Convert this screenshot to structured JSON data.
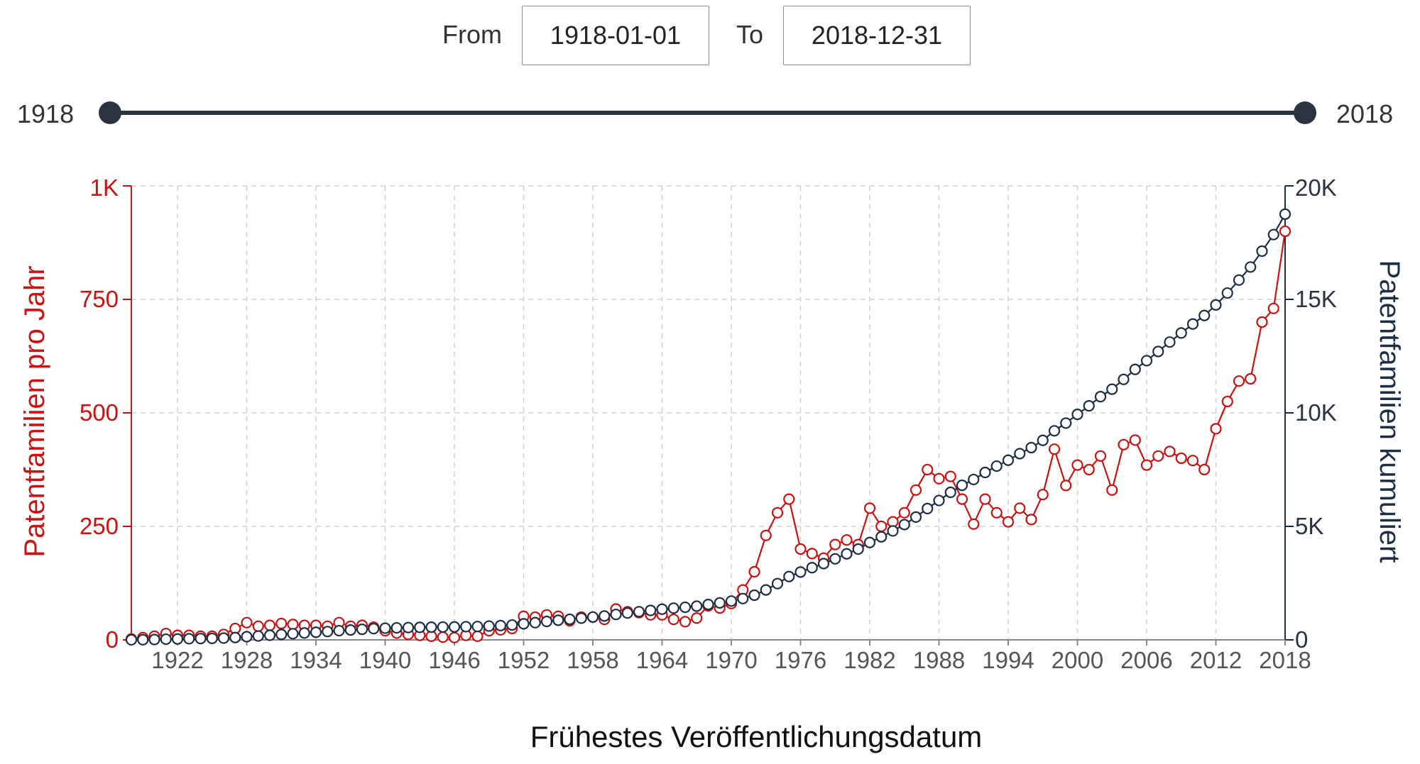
{
  "range": {
    "from_label": "From",
    "from_value": "1918-01-01",
    "to_label": "To",
    "to_value": "2018-12-31"
  },
  "slider": {
    "min_label": "1918",
    "max_label": "2018",
    "min_value": 1918,
    "max_value": 2018,
    "low": 1918,
    "high": 2018
  },
  "chart_data": {
    "type": "line",
    "title": "",
    "xlabel": "Frühestes Veröffentlichungsdatum",
    "ylabel_left": "Patentfamilien pro Jahr",
    "ylabel_right": "Patentfamilien kumuliert",
    "xlim": [
      1918,
      2018
    ],
    "ylim_left": [
      0,
      1000
    ],
    "ylim_right": [
      0,
      20000
    ],
    "x_ticks": [
      "1922",
      "1928",
      "1934",
      "1940",
      "1946",
      "1952",
      "1958",
      "1964",
      "1970",
      "1976",
      "1982",
      "1988",
      "1994",
      "2000",
      "2006",
      "2012",
      "2018"
    ],
    "y_ticks_left": [
      "0",
      "250",
      "500",
      "750",
      "1K"
    ],
    "y_ticks_right": [
      "0",
      "5K",
      "10K",
      "15K",
      "20K"
    ],
    "grid": true,
    "colors": {
      "per_year": "#cc1111",
      "cumulative": "#1c2d44"
    },
    "x": [
      1918,
      1919,
      1920,
      1921,
      1922,
      1923,
      1924,
      1925,
      1926,
      1927,
      1928,
      1929,
      1930,
      1931,
      1932,
      1933,
      1934,
      1935,
      1936,
      1937,
      1938,
      1939,
      1940,
      1941,
      1942,
      1943,
      1944,
      1945,
      1946,
      1947,
      1948,
      1949,
      1950,
      1951,
      1952,
      1953,
      1954,
      1955,
      1956,
      1957,
      1958,
      1959,
      1960,
      1961,
      1962,
      1963,
      1964,
      1965,
      1966,
      1967,
      1968,
      1969,
      1970,
      1971,
      1972,
      1973,
      1974,
      1975,
      1976,
      1977,
      1978,
      1979,
      1980,
      1981,
      1982,
      1983,
      1984,
      1985,
      1986,
      1987,
      1988,
      1989,
      1990,
      1991,
      1992,
      1993,
      1994,
      1995,
      1996,
      1997,
      1998,
      1999,
      2000,
      2001,
      2002,
      2003,
      2004,
      2005,
      2006,
      2007,
      2008,
      2009,
      2010,
      2011,
      2012,
      2013,
      2014,
      2015,
      2016,
      2017,
      2018
    ],
    "series": [
      {
        "name": "Patentfamilien pro Jahr",
        "axis": "left",
        "values": [
          2,
          5,
          8,
          14,
          10,
          10,
          8,
          8,
          12,
          25,
          38,
          30,
          32,
          36,
          34,
          32,
          32,
          30,
          38,
          30,
          32,
          28,
          20,
          15,
          12,
          10,
          8,
          6,
          5,
          10,
          8,
          20,
          22,
          25,
          52,
          50,
          55,
          52,
          42,
          50,
          50,
          45,
          68,
          62,
          60,
          55,
          55,
          45,
          40,
          48,
          75,
          70,
          80,
          110,
          150,
          230,
          280,
          310,
          200,
          190,
          180,
          210,
          220,
          210,
          290,
          250,
          260,
          280,
          330,
          375,
          355,
          360,
          310,
          255,
          310,
          280,
          260,
          290,
          265,
          320,
          420,
          340,
          385,
          375,
          405,
          330,
          430,
          440,
          385,
          405,
          415,
          400,
          395,
          375,
          465,
          525,
          570,
          575,
          700,
          730,
          900
        ]
      },
      {
        "name": "Patentfamilien kumuliert",
        "axis": "right",
        "values": [
          2,
          7,
          15,
          29,
          39,
          49,
          57,
          65,
          77,
          102,
          140,
          170,
          202,
          238,
          272,
          304,
          336,
          366,
          404,
          434,
          466,
          494,
          514,
          529,
          541,
          551,
          559,
          565,
          570,
          580,
          588,
          608,
          630,
          655,
          707,
          757,
          812,
          864,
          906,
          956,
          1006,
          1051,
          1119,
          1181,
          1241,
          1296,
          1351,
          1396,
          1436,
          1484,
          1559,
          1629,
          1709,
          1819,
          1969,
          2199,
          2479,
          2789,
          2989,
          3179,
          3359,
          3569,
          3789,
          3999,
          4289,
          4539,
          4799,
          5079,
          5409,
          5784,
          6139,
          6499,
          6809,
          7064,
          7374,
          7654,
          7914,
          8204,
          8469,
          8789,
          9209,
          9549,
          9934,
          10309,
          10714,
          11044,
          11474,
          11914,
          12299,
          12704,
          13119,
          13519,
          13914,
          14289,
          14754,
          15279,
          15849,
          16424,
          17124,
          17854,
          18754
        ]
      }
    ]
  }
}
